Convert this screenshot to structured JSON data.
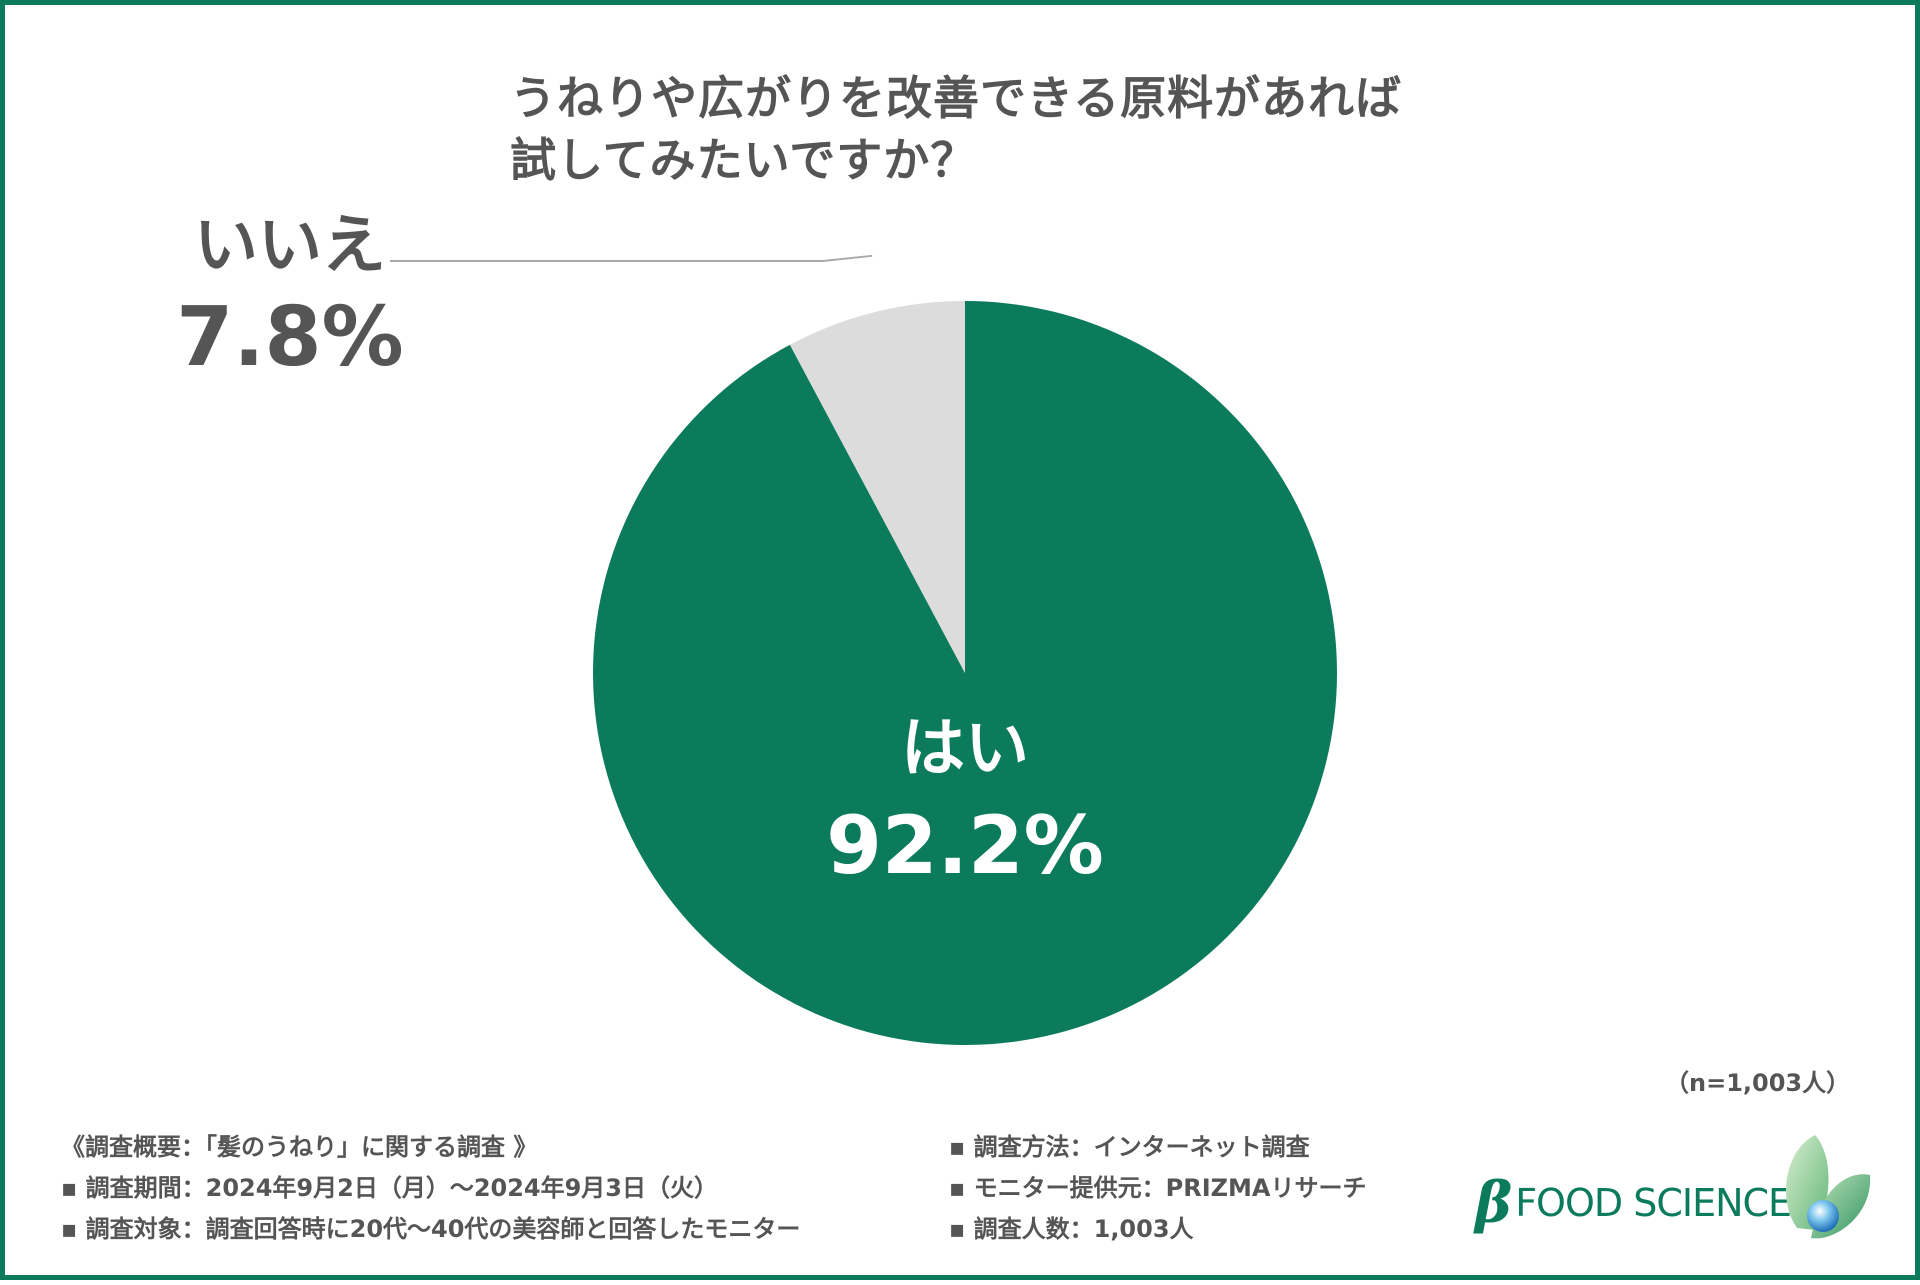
{
  "title": {
    "line1": "うねりや広がりを改善できる原料があれば",
    "line2": "試してみたいですか？"
  },
  "chart_data": {
    "type": "pie",
    "title": "うねりや広がりを改善できる原料があれば試してみたいですか？",
    "slices": [
      {
        "label": "はい",
        "value": 92.2,
        "value_label": "92.2%",
        "color": "#0b7b5b",
        "label_color": "#ffffff"
      },
      {
        "label": "いいえ",
        "value": 7.8,
        "value_label": "7.8%",
        "color": "#dcdcdc",
        "label_color": "#555555"
      }
    ],
    "start_angle": "12 o'clock",
    "direction": "clockwise",
    "legend": "none"
  },
  "sample_note": "（n=1,003人）",
  "footer": {
    "left": [
      "《調査概要：「髪のうねり」に関する調査 》",
      "▪ 調査期間：2024年9月2日（月）〜2024年9月3日（火）",
      "▪ 調査対象：調査回答時に20代〜40代の美容師と回答したモニター"
    ],
    "right": [
      "▪ 調査方法：インターネット調査",
      "▪ モニター提供元：PRIZMAリサーチ",
      "▪ 調査人数：1,003人"
    ]
  },
  "logo": {
    "beta": "β",
    "text": "FOOD SCIENCE"
  },
  "colors": {
    "border": "#0b7b5b",
    "text": "#555555",
    "leader_line": "#aaaaaa"
  }
}
